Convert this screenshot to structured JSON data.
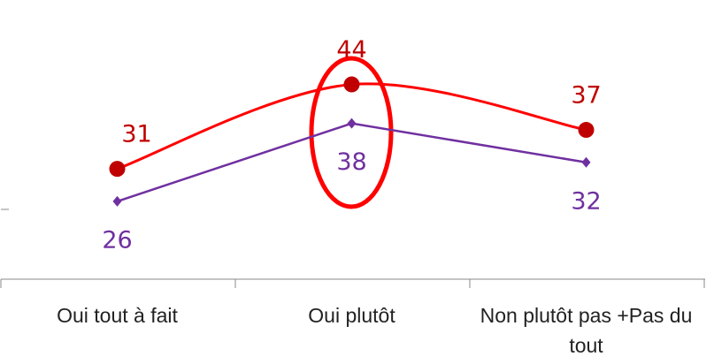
{
  "chart_data": {
    "type": "line",
    "categories": [
      "Oui tout à fait",
      "Oui plutôt",
      "Non plutôt pas +Pas du tout"
    ],
    "series": [
      {
        "name": null,
        "color": "#ff0000",
        "marker_color": "#c00000",
        "label_color": "#c00000",
        "smooth": true,
        "marker": "circle",
        "label_position": "above",
        "values": [
          31,
          44,
          37
        ]
      },
      {
        "name": null,
        "color": "#7030a0",
        "marker_color": "#7030a0",
        "label_color": "#7030a0",
        "smooth": false,
        "marker": "diamond",
        "label_position": "below",
        "values": [
          26,
          38,
          32
        ]
      }
    ],
    "ylim": [
      0,
      57
    ]
  }
}
